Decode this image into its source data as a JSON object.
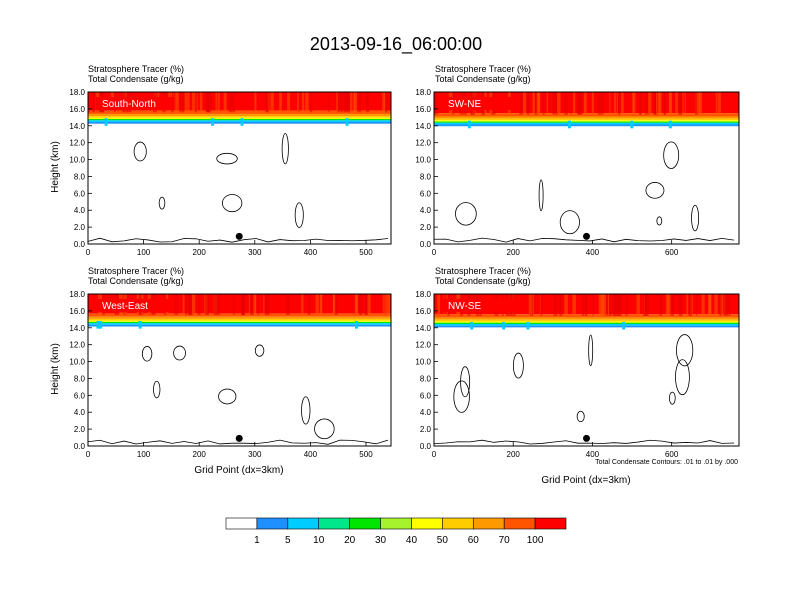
{
  "title": "2013-09-16_06:00:00",
  "colorbar": {
    "labels": [
      "1",
      "5",
      "10",
      "20",
      "30",
      "40",
      "50",
      "60",
      "70",
      "100"
    ],
    "colors": [
      "#ffffff",
      "#1e90ff",
      "#00ccff",
      "#00e68a",
      "#00e600",
      "#a6f22c",
      "#ffff00",
      "#ffcc00",
      "#ff9900",
      "#ff5500",
      "#ff0000"
    ]
  },
  "footer_note": "Total Condensate Contours: .01 to .01 by .000",
  "chart_data": [
    {
      "type": "contour",
      "label": "South-North",
      "title_lines": [
        "Stratosphere Tracer   (%)",
        "Total Condensate   (g/kg)"
      ],
      "ylabel": "Height (km)",
      "xlabel": "",
      "xlim": [
        0,
        545
      ],
      "ylim": [
        0,
        18
      ],
      "xticks": [
        0,
        100,
        200,
        300,
        400,
        500
      ],
      "yticks": [
        "0.0",
        "2.0",
        "4.0",
        "6.0",
        "8.0",
        "10.0",
        "12.0",
        "14.0",
        "16.0",
        "18.0"
      ],
      "tropopause_km": 14.6,
      "marker_x": 272
    },
    {
      "type": "contour",
      "label": "SW-NE",
      "title_lines": [
        "Stratosphere Tracer   (%)",
        "Total Condensate   (g/kg)"
      ],
      "ylabel": "",
      "xlabel": "",
      "xlim": [
        0,
        770
      ],
      "ylim": [
        0,
        18
      ],
      "xticks": [
        0,
        200,
        400,
        600
      ],
      "yticks": [
        "0.0",
        "2.0",
        "4.0",
        "6.0",
        "8.0",
        "10.0",
        "12.0",
        "14.0",
        "16.0",
        "18.0"
      ],
      "tropopause_km": 14.3,
      "marker_x": 385
    },
    {
      "type": "contour",
      "label": "West-East",
      "title_lines": [
        "Stratosphere Tracer   (%)",
        "Total Condensate   (g/kg)"
      ],
      "ylabel": "Height (km)",
      "xlabel": "Grid Point (dx=3km)",
      "xlim": [
        0,
        545
      ],
      "ylim": [
        0,
        18
      ],
      "xticks": [
        0,
        100,
        200,
        300,
        400,
        500
      ],
      "yticks": [
        "0.0",
        "2.0",
        "4.0",
        "6.0",
        "8.0",
        "10.0",
        "12.0",
        "14.0",
        "16.0",
        "18.0"
      ],
      "tropopause_km": 14.5,
      "marker_x": 272
    },
    {
      "type": "contour",
      "label": "NW-SE",
      "title_lines": [
        "Stratosphere Tracer   (%)",
        "Total Condensate   (g/kg)"
      ],
      "ylabel": "",
      "xlabel": "Grid Point (dx=3km)",
      "xlim": [
        0,
        770
      ],
      "ylim": [
        0,
        18
      ],
      "xticks": [
        0,
        200,
        400,
        600
      ],
      "yticks": [
        "0.0",
        "2.0",
        "4.0",
        "6.0",
        "8.0",
        "10.0",
        "12.0",
        "14.0",
        "16.0",
        "18.0"
      ],
      "tropopause_km": 14.4,
      "marker_x": 385
    }
  ]
}
